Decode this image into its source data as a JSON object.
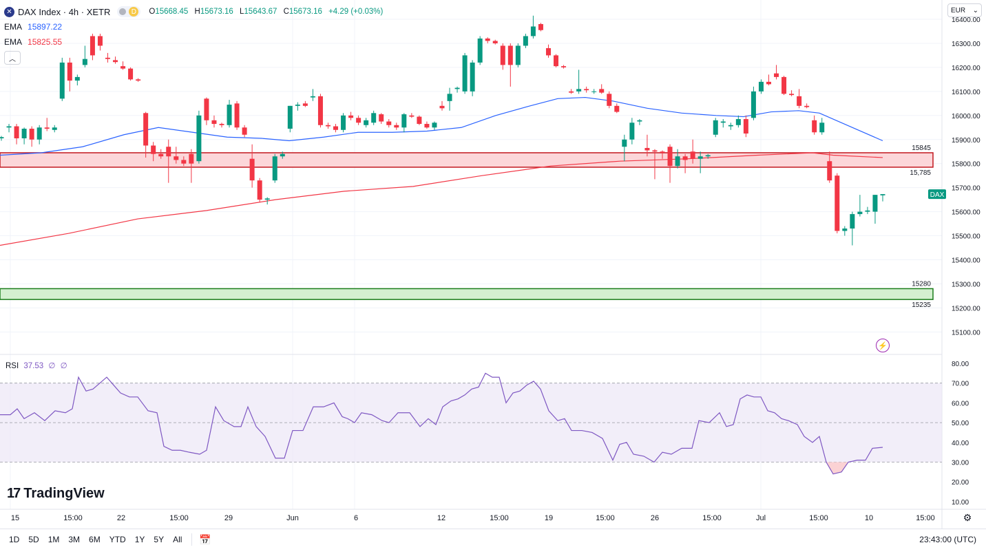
{
  "header": {
    "symbol_icon": "x-logo-icon",
    "symbol_title": "DAX Index · 4h · XETR",
    "interval_badge": "D",
    "ohlc": {
      "o_label": "O",
      "o": "15668.45",
      "h_label": "H",
      "h": "15673.16",
      "l_label": "L",
      "l": "15643.67",
      "c_label": "C",
      "c": "15673.16",
      "change": "+4.29 (+0.03%)"
    },
    "ema1": {
      "label": "EMA",
      "value": "15897.22",
      "color": "#2962ff"
    },
    "ema2": {
      "label": "EMA",
      "value": "15825.55",
      "color": "#f23645"
    },
    "collapse_icon": "chevron-up-icon"
  },
  "currency": "EUR",
  "price_axis": {
    "ticks": [
      "16400.00",
      "16300.00",
      "16200.00",
      "16100.00",
      "16000.00",
      "15900.00",
      "15800.00",
      "15700.00",
      "15600.00",
      "15500.00",
      "15400.00",
      "15300.00",
      "15200.00",
      "15100.00"
    ]
  },
  "zones": {
    "resistance": {
      "top": "15845",
      "bottom": "15,785",
      "top_value": 15845,
      "bottom_value": 15785,
      "color": "#f23645"
    },
    "support": {
      "top": "15280",
      "bottom": "15235",
      "top_value": 15280,
      "bottom_value": 15235,
      "color": "#089981"
    }
  },
  "last_price_label": "DAX",
  "rsi": {
    "label": "RSI",
    "value": "37.53",
    "extra1": "∅",
    "extra2": "∅",
    "ticks": [
      "80.00",
      "70.00",
      "60.00",
      "50.00",
      "40.00",
      "30.00",
      "20.00",
      "10.00"
    ]
  },
  "time_axis": {
    "labels": [
      "15",
      "15:00",
      "22",
      "15:00",
      "29",
      "Jun",
      "6",
      "12",
      "15:00",
      "19",
      "15:00",
      "26",
      "15:00",
      "Jul",
      "15:00",
      "10",
      "15:00"
    ]
  },
  "branding": {
    "logo_text": "TradingView",
    "logo_mark": "17"
  },
  "bottom_bar": {
    "ranges": [
      "1D",
      "5D",
      "1M",
      "3M",
      "6M",
      "YTD",
      "1Y",
      "5Y",
      "All"
    ],
    "clock": "23:43:00 (UTC)"
  },
  "chart_data": {
    "type": "candlestick",
    "y_range": [
      15050,
      16450
    ],
    "up_color": "#089981",
    "down_color": "#f23645",
    "candles": [
      {
        "o": 15905,
        "h": 15915,
        "l": 15895,
        "c": 15910
      },
      {
        "o": 15950,
        "h": 15965,
        "l": 15930,
        "c": 15955
      },
      {
        "o": 15955,
        "h": 15965,
        "l": 15880,
        "c": 15905
      },
      {
        "o": 15905,
        "h": 15950,
        "l": 15880,
        "c": 15945
      },
      {
        "o": 15945,
        "h": 15955,
        "l": 15870,
        "c": 15900
      },
      {
        "o": 15900,
        "h": 15960,
        "l": 15880,
        "c": 15950
      },
      {
        "o": 15950,
        "h": 15990,
        "l": 15935,
        "c": 15945
      },
      {
        "o": 15940,
        "h": 15960,
        "l": 15930,
        "c": 15950
      },
      {
        "o": 16070,
        "h": 16240,
        "l": 16060,
        "c": 16220
      },
      {
        "o": 16220,
        "h": 16240,
        "l": 16100,
        "c": 16145
      },
      {
        "o": 16145,
        "h": 16170,
        "l": 16125,
        "c": 16160
      },
      {
        "o": 16210,
        "h": 16290,
        "l": 16200,
        "c": 16235
      },
      {
        "o": 16330,
        "h": 16340,
        "l": 16230,
        "c": 16250
      },
      {
        "o": 16330,
        "h": 16340,
        "l": 16270,
        "c": 16290
      },
      {
        "o": 16240,
        "h": 16260,
        "l": 16220,
        "c": 16235
      },
      {
        "o": 16230,
        "h": 16245,
        "l": 16215,
        "c": 16222
      },
      {
        "o": 16205,
        "h": 16225,
        "l": 16190,
        "c": 16195
      },
      {
        "o": 16195,
        "h": 16200,
        "l": 16145,
        "c": 16150
      },
      {
        "o": 16150,
        "h": 16155,
        "l": 16140,
        "c": 16145
      },
      {
        "o": 16010,
        "h": 16015,
        "l": 15825,
        "c": 15875
      },
      {
        "o": 15875,
        "h": 15890,
        "l": 15810,
        "c": 15840
      },
      {
        "o": 15840,
        "h": 15860,
        "l": 15820,
        "c": 15830
      },
      {
        "o": 15870,
        "h": 15900,
        "l": 15720,
        "c": 15830
      },
      {
        "o": 15830,
        "h": 15870,
        "l": 15800,
        "c": 15815
      },
      {
        "o": 15815,
        "h": 15830,
        "l": 15790,
        "c": 15800
      },
      {
        "o": 15840,
        "h": 15860,
        "l": 15720,
        "c": 15800
      },
      {
        "o": 15810,
        "h": 16020,
        "l": 15800,
        "c": 16000
      },
      {
        "o": 16070,
        "h": 16075,
        "l": 15960,
        "c": 15980
      },
      {
        "o": 15980,
        "h": 16000,
        "l": 15950,
        "c": 15965
      },
      {
        "o": 15965,
        "h": 15970,
        "l": 15950,
        "c": 15960
      },
      {
        "o": 15960,
        "h": 16065,
        "l": 15950,
        "c": 16045
      },
      {
        "o": 16050,
        "h": 16060,
        "l": 15940,
        "c": 15950
      },
      {
        "o": 15950,
        "h": 15960,
        "l": 15910,
        "c": 15920
      },
      {
        "o": 15820,
        "h": 15880,
        "l": 15700,
        "c": 15730
      },
      {
        "o": 15730,
        "h": 15740,
        "l": 15640,
        "c": 15650
      },
      {
        "o": 15650,
        "h": 15660,
        "l": 15630,
        "c": 15655
      },
      {
        "o": 15730,
        "h": 15840,
        "l": 15720,
        "c": 15830
      },
      {
        "o": 15830,
        "h": 15850,
        "l": 15820,
        "c": 15840
      },
      {
        "o": 15945,
        "h": 16040,
        "l": 15930,
        "c": 16040
      },
      {
        "o": 16040,
        "h": 16055,
        "l": 16020,
        "c": 16045
      },
      {
        "o": 16050,
        "h": 16060,
        "l": 16035,
        "c": 16040
      },
      {
        "o": 16075,
        "h": 16110,
        "l": 16060,
        "c": 16080
      },
      {
        "o": 16080,
        "h": 16090,
        "l": 15950,
        "c": 15960
      },
      {
        "o": 15960,
        "h": 15970,
        "l": 15945,
        "c": 15955
      },
      {
        "o": 15955,
        "h": 15965,
        "l": 15930,
        "c": 15940
      },
      {
        "o": 15940,
        "h": 16010,
        "l": 15930,
        "c": 16000
      },
      {
        "o": 16000,
        "h": 16015,
        "l": 15980,
        "c": 15990
      },
      {
        "o": 15990,
        "h": 16000,
        "l": 15960,
        "c": 15970
      },
      {
        "o": 15960,
        "h": 15990,
        "l": 15950,
        "c": 15980
      },
      {
        "o": 15970,
        "h": 16020,
        "l": 15960,
        "c": 16010
      },
      {
        "o": 16005,
        "h": 16010,
        "l": 15965,
        "c": 15975
      },
      {
        "o": 15975,
        "h": 15985,
        "l": 15950,
        "c": 15960
      },
      {
        "o": 15960,
        "h": 15970,
        "l": 15940,
        "c": 15950
      },
      {
        "o": 15950,
        "h": 16010,
        "l": 15930,
        "c": 16005
      },
      {
        "o": 16000,
        "h": 16010,
        "l": 15990,
        "c": 15995
      },
      {
        "o": 15995,
        "h": 16000,
        "l": 15960,
        "c": 15965
      },
      {
        "o": 15965,
        "h": 15975,
        "l": 15945,
        "c": 15950
      },
      {
        "o": 15950,
        "h": 15975,
        "l": 15940,
        "c": 15970
      },
      {
        "o": 16040,
        "h": 16060,
        "l": 16020,
        "c": 16030
      },
      {
        "o": 16060,
        "h": 16115,
        "l": 16020,
        "c": 16090
      },
      {
        "o": 16110,
        "h": 16120,
        "l": 16095,
        "c": 16115
      },
      {
        "o": 16100,
        "h": 16260,
        "l": 16090,
        "c": 16250
      },
      {
        "o": 16100,
        "h": 16230,
        "l": 16080,
        "c": 16220
      },
      {
        "o": 16220,
        "h": 16330,
        "l": 16210,
        "c": 16320
      },
      {
        "o": 16320,
        "h": 16325,
        "l": 16300,
        "c": 16310
      },
      {
        "o": 16310,
        "h": 16315,
        "l": 16295,
        "c": 16300
      },
      {
        "o": 16290,
        "h": 16300,
        "l": 16190,
        "c": 16210
      },
      {
        "o": 16290,
        "h": 16300,
        "l": 16120,
        "c": 16210
      },
      {
        "o": 16210,
        "h": 16300,
        "l": 16200,
        "c": 16290
      },
      {
        "o": 16290,
        "h": 16340,
        "l": 16280,
        "c": 16330
      },
      {
        "o": 16330,
        "h": 16415,
        "l": 16320,
        "c": 16370
      },
      {
        "o": 16380,
        "h": 16385,
        "l": 16350,
        "c": 16355
      },
      {
        "o": 16280,
        "h": 16295,
        "l": 16240,
        "c": 16250
      },
      {
        "o": 16250,
        "h": 16255,
        "l": 16200,
        "c": 16205
      },
      {
        "o": 16205,
        "h": 16210,
        "l": 16195,
        "c": 16200
      },
      {
        "o": 16100,
        "h": 16110,
        "l": 16090,
        "c": 16095
      },
      {
        "o": 16100,
        "h": 16190,
        "l": 16090,
        "c": 16110
      },
      {
        "o": 16110,
        "h": 16120,
        "l": 16095,
        "c": 16105
      },
      {
        "o": 16100,
        "h": 16110,
        "l": 16090,
        "c": 16100
      },
      {
        "o": 16110,
        "h": 16130,
        "l": 16090,
        "c": 16095
      },
      {
        "o": 16090,
        "h": 16100,
        "l": 16030,
        "c": 16040
      },
      {
        "o": 16040,
        "h": 16050,
        "l": 16010,
        "c": 16015
      },
      {
        "o": 15870,
        "h": 15920,
        "l": 15810,
        "c": 15900
      },
      {
        "o": 15900,
        "h": 15990,
        "l": 15880,
        "c": 15970
      },
      {
        "o": 15975,
        "h": 15985,
        "l": 15960,
        "c": 15980
      },
      {
        "o": 15865,
        "h": 15920,
        "l": 15830,
        "c": 15855
      },
      {
        "o": 15855,
        "h": 15860,
        "l": 15735,
        "c": 15850
      },
      {
        "o": 15850,
        "h": 15855,
        "l": 15820,
        "c": 15845
      },
      {
        "o": 15870,
        "h": 15880,
        "l": 15720,
        "c": 15790
      },
      {
        "o": 15790,
        "h": 15860,
        "l": 15780,
        "c": 15830
      },
      {
        "o": 15830,
        "h": 15840,
        "l": 15760,
        "c": 15815
      },
      {
        "o": 15850,
        "h": 15900,
        "l": 15800,
        "c": 15820
      },
      {
        "o": 15820,
        "h": 15850,
        "l": 15760,
        "c": 15830
      },
      {
        "o": 15830,
        "h": 15840,
        "l": 15820,
        "c": 15835
      },
      {
        "o": 15920,
        "h": 15990,
        "l": 15910,
        "c": 15980
      },
      {
        "o": 15970,
        "h": 15985,
        "l": 15950,
        "c": 15975
      },
      {
        "o": 15955,
        "h": 15970,
        "l": 15940,
        "c": 15960
      },
      {
        "o": 15960,
        "h": 16000,
        "l": 15950,
        "c": 15985
      },
      {
        "o": 15985,
        "h": 16000,
        "l": 15910,
        "c": 15925
      },
      {
        "o": 15990,
        "h": 16120,
        "l": 15980,
        "c": 16100
      },
      {
        "o": 16100,
        "h": 16150,
        "l": 16090,
        "c": 16140
      },
      {
        "o": 16140,
        "h": 16170,
        "l": 16125,
        "c": 16130
      },
      {
        "o": 16175,
        "h": 16210,
        "l": 16150,
        "c": 16160
      },
      {
        "o": 16160,
        "h": 16165,
        "l": 16085,
        "c": 16090
      },
      {
        "o": 16090,
        "h": 16105,
        "l": 16080,
        "c": 16085
      },
      {
        "o": 16080,
        "h": 16110,
        "l": 16030,
        "c": 16040
      },
      {
        "o": 16040,
        "h": 16050,
        "l": 16030,
        "c": 16035
      },
      {
        "o": 15980,
        "h": 16000,
        "l": 15920,
        "c": 15930
      },
      {
        "o": 15930,
        "h": 15990,
        "l": 15920,
        "c": 15970
      },
      {
        "o": 15810,
        "h": 15850,
        "l": 15720,
        "c": 15730
      },
      {
        "o": 15750,
        "h": 15760,
        "l": 15510,
        "c": 15520
      },
      {
        "o": 15520,
        "h": 15540,
        "l": 15500,
        "c": 15530
      },
      {
        "o": 15530,
        "h": 15600,
        "l": 15460,
        "c": 15590
      },
      {
        "o": 15590,
        "h": 15670,
        "l": 15580,
        "c": 15600
      },
      {
        "o": 15600,
        "h": 15620,
        "l": 15590,
        "c": 15605
      },
      {
        "o": 15600,
        "h": 15670,
        "l": 15550,
        "c": 15670
      },
      {
        "o": 15668,
        "h": 15673,
        "l": 15643,
        "c": 15673
      }
    ],
    "ema_blue": [
      [
        0,
        15835
      ],
      [
        60,
        15845
      ],
      [
        120,
        15870
      ],
      [
        180,
        15920
      ],
      [
        230,
        15950
      ],
      [
        280,
        15930
      ],
      [
        330,
        15910
      ],
      [
        380,
        15905
      ],
      [
        420,
        15895
      ],
      [
        470,
        15910
      ],
      [
        520,
        15930
      ],
      [
        570,
        15930
      ],
      [
        620,
        15935
      ],
      [
        670,
        15950
      ],
      [
        720,
        16000
      ],
      [
        770,
        16040
      ],
      [
        810,
        16070
      ],
      [
        850,
        16075
      ],
      [
        890,
        16060
      ],
      [
        940,
        16030
      ],
      [
        990,
        16010
      ],
      [
        1040,
        16000
      ],
      [
        1080,
        15995
      ],
      [
        1120,
        16015
      ],
      [
        1160,
        16020
      ],
      [
        1190,
        16010
      ],
      [
        1230,
        15960
      ],
      [
        1282,
        15895
      ]
    ],
    "ema_red": [
      [
        0,
        15460
      ],
      [
        100,
        15510
      ],
      [
        200,
        15570
      ],
      [
        300,
        15605
      ],
      [
        400,
        15650
      ],
      [
        500,
        15685
      ],
      [
        600,
        15705
      ],
      [
        700,
        15750
      ],
      [
        800,
        15790
      ],
      [
        900,
        15810
      ],
      [
        1000,
        15820
      ],
      [
        1100,
        15835
      ],
      [
        1180,
        15845
      ],
      [
        1210,
        15835
      ],
      [
        1282,
        15825
      ]
    ],
    "rsi_values": [
      [
        0,
        54
      ],
      [
        15,
        54
      ],
      [
        25,
        57
      ],
      [
        35,
        52
      ],
      [
        50,
        55
      ],
      [
        65,
        51
      ],
      [
        80,
        56
      ],
      [
        95,
        55
      ],
      [
        105,
        57
      ],
      [
        114,
        73
      ],
      [
        125,
        66
      ],
      [
        135,
        67
      ],
      [
        145,
        70
      ],
      [
        155,
        73
      ],
      [
        165,
        69
      ],
      [
        175,
        65
      ],
      [
        188,
        63
      ],
      [
        200,
        63
      ],
      [
        215,
        56
      ],
      [
        228,
        55
      ],
      [
        238,
        38
      ],
      [
        250,
        36
      ],
      [
        262,
        36
      ],
      [
        275,
        35
      ],
      [
        290,
        34
      ],
      [
        300,
        36
      ],
      [
        313,
        58
      ],
      [
        325,
        51
      ],
      [
        340,
        48
      ],
      [
        350,
        48
      ],
      [
        360,
        58
      ],
      [
        372,
        48
      ],
      [
        385,
        43
      ],
      [
        400,
        32
      ],
      [
        413,
        32
      ],
      [
        425,
        46
      ],
      [
        440,
        46
      ],
      [
        455,
        58
      ],
      [
        470,
        58
      ],
      [
        485,
        60
      ],
      [
        497,
        53
      ],
      [
        505,
        52
      ],
      [
        515,
        50
      ],
      [
        525,
        55
      ],
      [
        540,
        54
      ],
      [
        555,
        51
      ],
      [
        565,
        50
      ],
      [
        578,
        55
      ],
      [
        595,
        55
      ],
      [
        610,
        48
      ],
      [
        622,
        52
      ],
      [
        633,
        49
      ],
      [
        643,
        58
      ],
      [
        655,
        61
      ],
      [
        665,
        62
      ],
      [
        675,
        64
      ],
      [
        685,
        67
      ],
      [
        695,
        68
      ],
      [
        705,
        75
      ],
      [
        715,
        73
      ],
      [
        725,
        73
      ],
      [
        735,
        60
      ],
      [
        745,
        65
      ],
      [
        755,
        66
      ],
      [
        765,
        69
      ],
      [
        775,
        71
      ],
      [
        785,
        67
      ],
      [
        797,
        56
      ],
      [
        810,
        51
      ],
      [
        820,
        52
      ],
      [
        830,
        46
      ],
      [
        845,
        46
      ],
      [
        860,
        45
      ],
      [
        875,
        42
      ],
      [
        890,
        31
      ],
      [
        900,
        39
      ],
      [
        910,
        40
      ],
      [
        920,
        34
      ],
      [
        935,
        33
      ],
      [
        950,
        30
      ],
      [
        962,
        35
      ],
      [
        975,
        34
      ],
      [
        990,
        37
      ],
      [
        1005,
        37
      ],
      [
        1015,
        51
      ],
      [
        1030,
        50
      ],
      [
        1045,
        55
      ],
      [
        1055,
        48
      ],
      [
        1065,
        49
      ],
      [
        1075,
        62
      ],
      [
        1085,
        64
      ],
      [
        1095,
        63
      ],
      [
        1105,
        63
      ],
      [
        1115,
        56
      ],
      [
        1125,
        55
      ],
      [
        1135,
        52
      ],
      [
        1145,
        51
      ],
      [
        1158,
        49
      ],
      [
        1168,
        43
      ],
      [
        1180,
        40
      ],
      [
        1190,
        43
      ],
      [
        1200,
        30
      ],
      [
        1210,
        24
      ],
      [
        1222,
        25
      ],
      [
        1232,
        30
      ],
      [
        1245,
        31
      ],
      [
        1257,
        31
      ],
      [
        1267,
        37
      ],
      [
        1282,
        37.5
      ]
    ]
  }
}
